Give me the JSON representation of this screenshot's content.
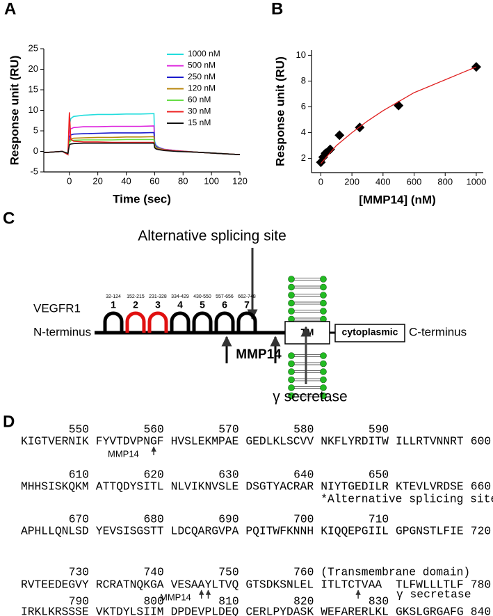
{
  "chart_data": [
    {
      "type": "line",
      "panel": "A",
      "xlabel": "Time (sec)",
      "ylabel": "Response unit (RU)",
      "x": [
        -18,
        -5,
        -1,
        0,
        1,
        3,
        10,
        20,
        30,
        40,
        50,
        59.5,
        60,
        61,
        63,
        67,
        75,
        90,
        105,
        120
      ],
      "xlim": [
        -18,
        120
      ],
      "xticks": [
        0,
        20,
        40,
        60,
        80,
        100,
        120
      ],
      "ylim": [
        -5,
        25
      ],
      "yticks": [
        -5,
        0,
        5,
        10,
        15,
        20,
        25
      ],
      "legend": "upper right",
      "series": [
        {
          "name": "1000 nM",
          "color": "#22dddd",
          "values": [
            -0.3,
            0,
            -0.8,
            6.5,
            8,
            8.5,
            8.8,
            9,
            9,
            9.1,
            9.1,
            9.2,
            2.5,
            1.5,
            1,
            0.5,
            0.2,
            -0.2,
            -0.5,
            -0.8
          ]
        },
        {
          "name": "500 nM",
          "color": "#dd22dd",
          "values": [
            -0.3,
            0,
            -0.7,
            5,
            5.5,
            5.8,
            6,
            6,
            6.1,
            6.1,
            6.1,
            6.2,
            2,
            1.3,
            0.9,
            0.5,
            0.2,
            -0.2,
            -0.5,
            -0.8
          ]
        },
        {
          "name": "250 nM",
          "color": "#1a1acc",
          "values": [
            -0.3,
            0,
            -0.6,
            3.5,
            4,
            4.2,
            4.3,
            4.4,
            4.5,
            4.5,
            4.5,
            4.6,
            1.8,
            1.2,
            0.8,
            0.4,
            0.1,
            -0.2,
            -0.5,
            -0.8
          ]
        },
        {
          "name": "120 nM",
          "color": "#b8860b",
          "values": [
            -0.3,
            0,
            -0.6,
            2.5,
            3,
            3.2,
            3.3,
            3.4,
            3.4,
            3.5,
            3.5,
            3.6,
            1.5,
            1,
            0.7,
            0.4,
            0.1,
            -0.2,
            -0.5,
            -0.8
          ]
        },
        {
          "name": "60 nM",
          "color": "#66dd44",
          "values": [
            -0.3,
            0,
            -0.5,
            2.2,
            2.6,
            2.7,
            2.8,
            2.8,
            2.8,
            2.9,
            2.9,
            2.9,
            1.3,
            0.9,
            0.6,
            0.3,
            0.1,
            -0.2,
            -0.5,
            -0.8
          ]
        },
        {
          "name": "30 nM",
          "color": "#ee2222",
          "values": [
            -0.3,
            0,
            -0.8,
            9.5,
            3,
            2.5,
            2.3,
            2.3,
            2.2,
            2.2,
            2.2,
            2.2,
            1,
            0.7,
            0.5,
            0.3,
            0.1,
            -0.2,
            -0.5,
            -0.8
          ]
        },
        {
          "name": "15 nM",
          "color": "#111111",
          "values": [
            -0.3,
            0,
            -0.5,
            1.6,
            1.8,
            1.9,
            2,
            2,
            2,
            2,
            2,
            2,
            0.9,
            0.6,
            0.4,
            0.2,
            0,
            -0.2,
            -0.5,
            -0.8
          ]
        }
      ]
    },
    {
      "type": "scatter",
      "panel": "B",
      "xlabel": "[MMP14] (nM)",
      "ylabel": "Response unit (RU)",
      "xlim": [
        -60,
        1045
      ],
      "xticks": [
        0,
        200,
        400,
        600,
        800,
        1000
      ],
      "ylim": [
        0.9,
        10.4
      ],
      "yticks": [
        2,
        4,
        6,
        8,
        10
      ],
      "series": [
        {
          "mode": "markers",
          "color": "#000000",
          "x": [
            0,
            15,
            30,
            60,
            120,
            250,
            500,
            1000
          ],
          "values": [
            1.7,
            2.1,
            2.4,
            2.7,
            3.8,
            4.4,
            6.1,
            9.1
          ]
        },
        {
          "mode": "line",
          "color": "#e02020",
          "x": [
            0,
            100,
            200,
            300,
            400,
            500,
            600,
            700,
            800,
            900,
            1000
          ],
          "values": [
            1.6,
            3.0,
            4.0,
            4.9,
            5.7,
            6.4,
            7.1,
            7.6,
            8.1,
            8.6,
            9.1
          ]
        }
      ]
    }
  ],
  "diagram": {
    "panel": "C",
    "title": "Alternative splicing site",
    "protein": "VEGFR1",
    "n_term": "N-terminus",
    "c_term": "C-terminus",
    "tm": "TM",
    "cytoplasmic": "cytoplasmic",
    "cleavage": "MMP14",
    "secretase": "γ secretase",
    "domains": [
      {
        "number": 1,
        "range": "32-124",
        "color": "#000000"
      },
      {
        "number": 2,
        "range": "152-215",
        "color": "#e01010"
      },
      {
        "number": 3,
        "range": "231-328",
        "color": "#e01010"
      },
      {
        "number": 4,
        "range": "334-429",
        "color": "#000000"
      },
      {
        "number": 5,
        "range": "430-550",
        "color": "#000000"
      },
      {
        "number": 6,
        "range": "557-656",
        "color": "#000000"
      },
      {
        "number": 7,
        "range": "662-748",
        "color": "#000000"
      }
    ]
  },
  "sequence": {
    "panel": "D",
    "blocks": [
      {
        "numbers": [
          550,
          560,
          570,
          580,
          590
        ],
        "groups": [
          "KIGTVERNIK",
          "FYVTDVPNGF",
          "HVSLEKMPAE",
          "GEDLKLSCVV",
          "NKFLYRDITW",
          "ILLRTVNNRT"
        ],
        "end": 600,
        "notes": [
          "MMP14"
        ]
      },
      {
        "numbers": [
          610,
          620,
          630,
          640,
          650
        ],
        "groups": [
          "MHHSISKQKM",
          "ATTQDYSITL",
          "NLVIKNVSLE",
          "DSGTYACRAR",
          "NIYTGEDILR",
          "KTEVLVRDSE"
        ],
        "end": 660,
        "highlight": [
          4,
          5
        ],
        "highlight_color": "#a52a2a",
        "notes": [
          "*Alternative splicing site*"
        ]
      },
      {
        "numbers": [
          670,
          680,
          690,
          700,
          710
        ],
        "groups": [
          "APHLLQNLSD",
          "YEVSISGSTT",
          "LDCQARGVPA",
          "PQITWFKNNH",
          "KIQQEPGIIL",
          "GPGNSTLFIE"
        ],
        "end": 720
      },
      {
        "numbers": [
          730,
          740,
          750,
          760
        ],
        "heading": "(Transmembrane domain)",
        "groups": [
          "RVTEEDEGVY",
          "RCRATNQKGA",
          "VESAAYLTVQ",
          "GTSDKSNLEL",
          "ITLTCTVAA",
          "TLFWLLLTLF"
        ],
        "end": 780,
        "highlight": [
          4,
          5
        ],
        "highlight_color": "#2ca02c",
        "notes": [
          "MMP14",
          "γ secretase"
        ]
      },
      {
        "numbers": [
          790,
          800,
          810,
          820,
          830
        ],
        "groups": [
          "IRKLKRSSSE",
          "VKTDYLSIIM",
          "DPDEVPLDEQ",
          "CERLPYDASK",
          "WEFARERLKL",
          "GKSLGRGAFG"
        ],
        "end": 840
      }
    ]
  }
}
